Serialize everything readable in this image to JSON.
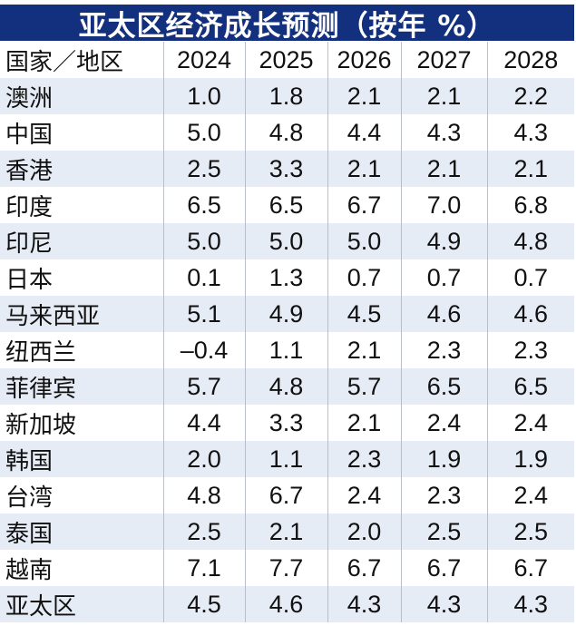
{
  "title": "亚太区经济成长预测（按年 %）",
  "colors": {
    "title_bar": "#12307d",
    "row_shade": "#e6ecf6",
    "separator": "#b9bec9"
  },
  "table": {
    "headers": [
      "国家／地区",
      "2024",
      "2025",
      "2026",
      "2027",
      "2028"
    ],
    "rows": [
      {
        "region": "澳洲",
        "values": [
          "1.0",
          "1.8",
          "2.1",
          "2.1",
          "2.2"
        ]
      },
      {
        "region": "中国",
        "values": [
          "5.0",
          "4.8",
          "4.4",
          "4.3",
          "4.3"
        ]
      },
      {
        "region": "香港",
        "values": [
          "2.5",
          "3.3",
          "2.1",
          "2.1",
          "2.1"
        ]
      },
      {
        "region": "印度",
        "values": [
          "6.5",
          "6.5",
          "6.7",
          "7.0",
          "6.8"
        ]
      },
      {
        "region": "印尼",
        "values": [
          "5.0",
          "5.0",
          "5.0",
          "4.9",
          "4.8"
        ]
      },
      {
        "region": "日本",
        "values": [
          "0.1",
          "1.3",
          "0.7",
          "0.7",
          "0.7"
        ]
      },
      {
        "region": "马来西亚",
        "values": [
          "5.1",
          "4.9",
          "4.5",
          "4.6",
          "4.6"
        ]
      },
      {
        "region": "纽西兰",
        "values": [
          "–0.4",
          "1.1",
          "2.1",
          "2.3",
          "2.3"
        ]
      },
      {
        "region": "菲律宾",
        "values": [
          "5.7",
          "4.8",
          "5.7",
          "6.5",
          "6.5"
        ]
      },
      {
        "region": "新加坡",
        "values": [
          "4.4",
          "3.3",
          "2.1",
          "2.4",
          "2.4"
        ]
      },
      {
        "region": "韩国",
        "values": [
          "2.0",
          "1.1",
          "2.3",
          "1.9",
          "1.9"
        ]
      },
      {
        "region": "台湾",
        "values": [
          "4.8",
          "6.7",
          "2.4",
          "2.3",
          "2.4"
        ]
      },
      {
        "region": "泰国",
        "values": [
          "2.5",
          "2.1",
          "2.0",
          "2.5",
          "2.5"
        ]
      },
      {
        "region": "越南",
        "values": [
          "7.1",
          "7.7",
          "6.7",
          "6.7",
          "6.7"
        ]
      },
      {
        "region": "亚太区",
        "values": [
          "4.5",
          "4.6",
          "4.3",
          "4.3",
          "4.3"
        ]
      }
    ]
  }
}
